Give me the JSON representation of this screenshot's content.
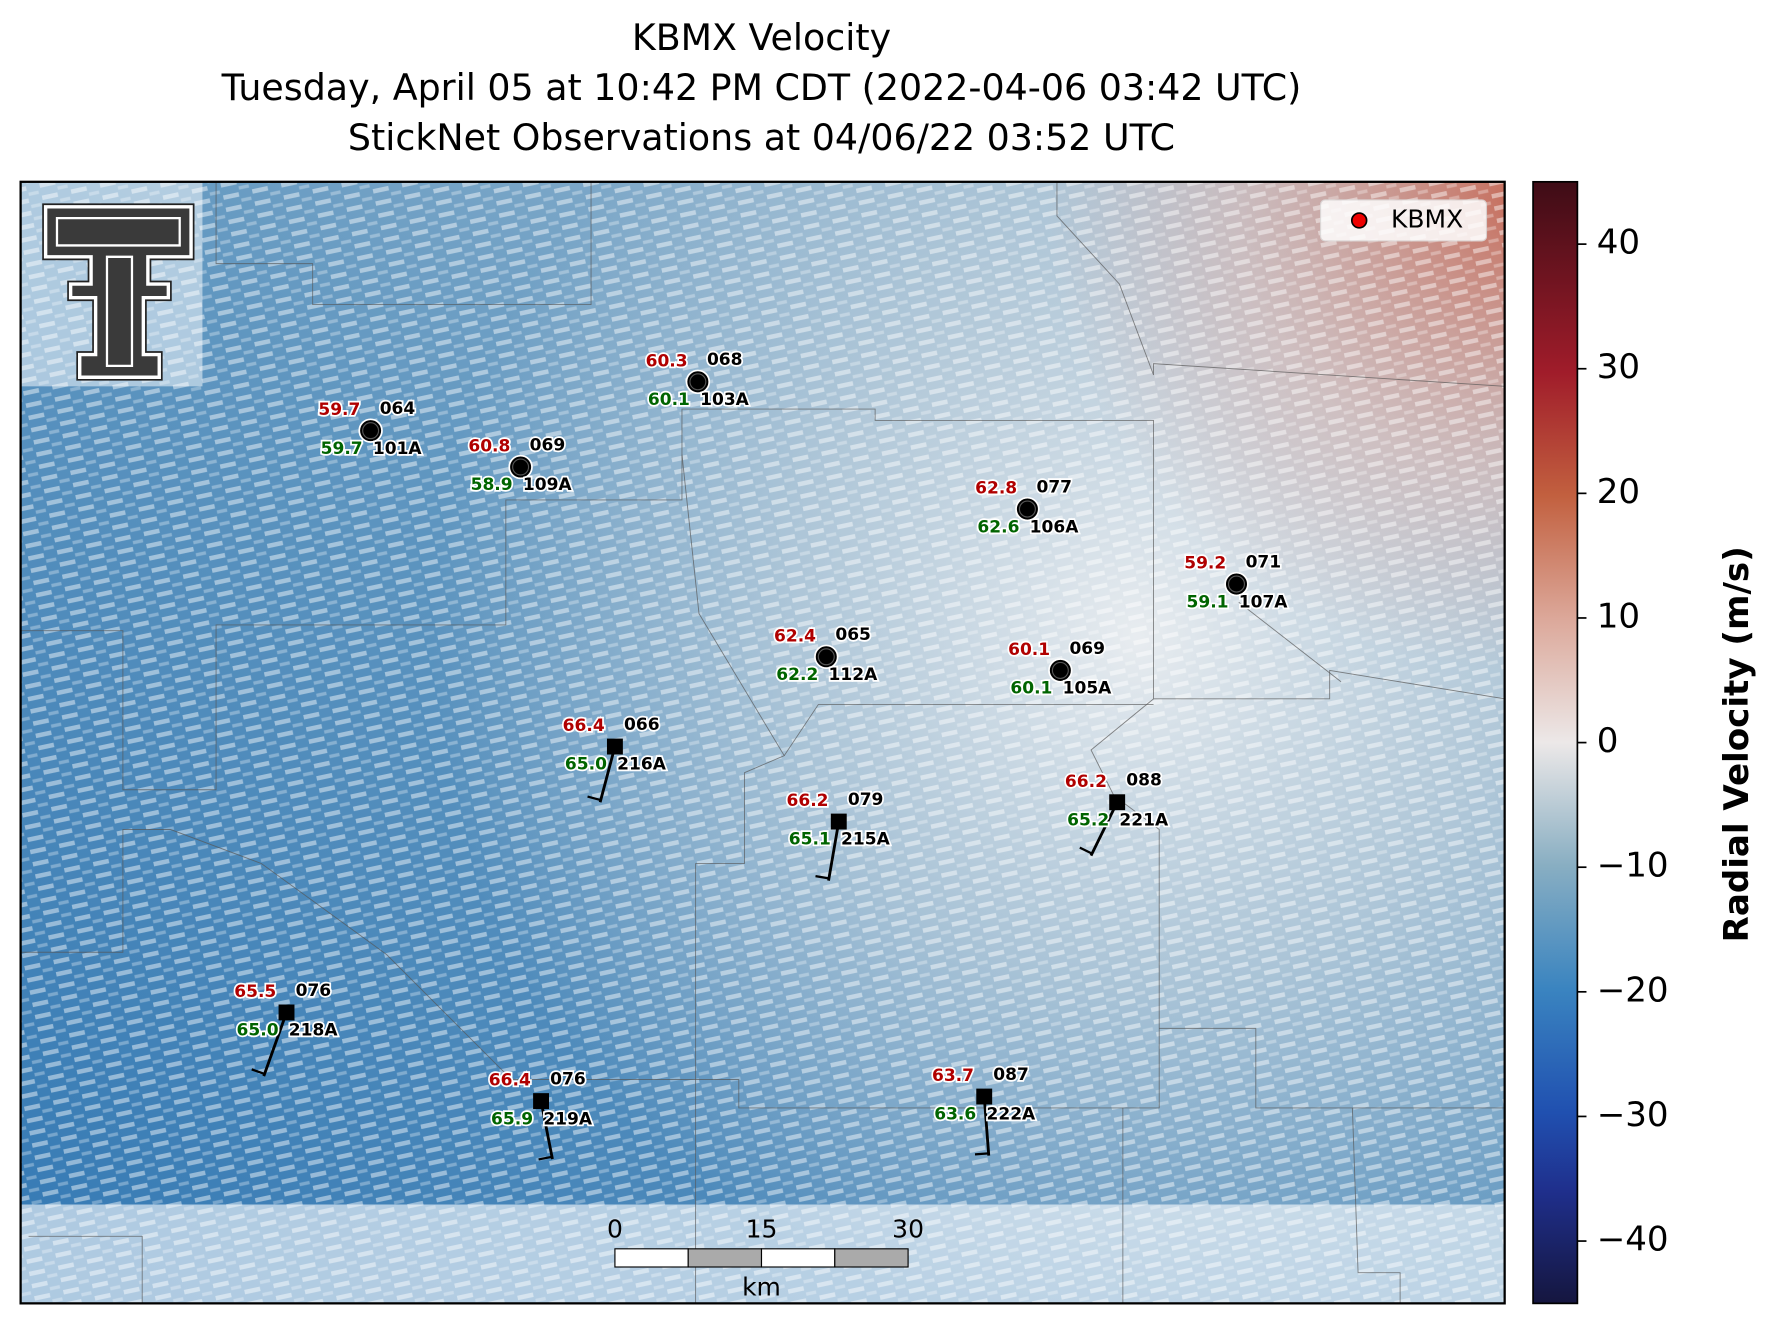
{
  "title": {
    "line1": "KBMX Velocity",
    "line2": "Tuesday, April 05 at 10:42 PM CDT (2022-04-06 03:42 UTC)",
    "line3": "StickNet Observations at 04/06/22 03:52 UTC"
  },
  "legend": {
    "label": "KBMX"
  },
  "colorbar": {
    "label": "Radial Velocity (m/s)",
    "lim": [
      -45,
      45
    ],
    "ticks": [
      {
        "value": -40,
        "label": "−40"
      },
      {
        "value": -30,
        "label": "−30"
      },
      {
        "value": -20,
        "label": "−20"
      },
      {
        "value": -10,
        "label": "−10"
      },
      0,
      10,
      20,
      30,
      40
    ]
  },
  "scalebar": {
    "ticks": [
      0,
      15,
      30
    ],
    "unit": "km"
  },
  "stations": [
    {
      "id": "101A",
      "temperature": "59.7",
      "direction": "064",
      "dewpoint": "59.7",
      "marker": "circle"
    },
    {
      "id": "109A",
      "temperature": "60.8",
      "direction": "069",
      "dewpoint": "58.9",
      "marker": "circle"
    },
    {
      "id": "103A",
      "temperature": "60.3",
      "direction": "068",
      "dewpoint": "60.1",
      "marker": "circle"
    },
    {
      "id": "106A",
      "temperature": "62.8",
      "direction": "077",
      "dewpoint": "62.6",
      "marker": "circle"
    },
    {
      "id": "107A",
      "temperature": "59.2",
      "direction": "071",
      "dewpoint": "59.1",
      "marker": "circle"
    },
    {
      "id": "112A",
      "temperature": "62.4",
      "direction": "065",
      "dewpoint": "62.2",
      "marker": "circle"
    },
    {
      "id": "105A",
      "temperature": "60.1",
      "direction": "069",
      "dewpoint": "60.1",
      "marker": "circle"
    },
    {
      "id": "216A",
      "temperature": "66.4",
      "direction": "066",
      "dewpoint": "65.0",
      "marker": "square"
    },
    {
      "id": "215A",
      "temperature": "66.2",
      "direction": "079",
      "dewpoint": "65.1",
      "marker": "square"
    },
    {
      "id": "221A",
      "temperature": "66.2",
      "direction": "088",
      "dewpoint": "65.2",
      "marker": "square"
    },
    {
      "id": "218A",
      "temperature": "65.5",
      "direction": "076",
      "dewpoint": "65.0",
      "marker": "square"
    },
    {
      "id": "219A",
      "temperature": "66.4",
      "direction": "076",
      "dewpoint": "65.9",
      "marker": "square"
    },
    {
      "id": "222A",
      "temperature": "63.7",
      "direction": "087",
      "dewpoint": "63.6",
      "marker": "square"
    }
  ]
}
